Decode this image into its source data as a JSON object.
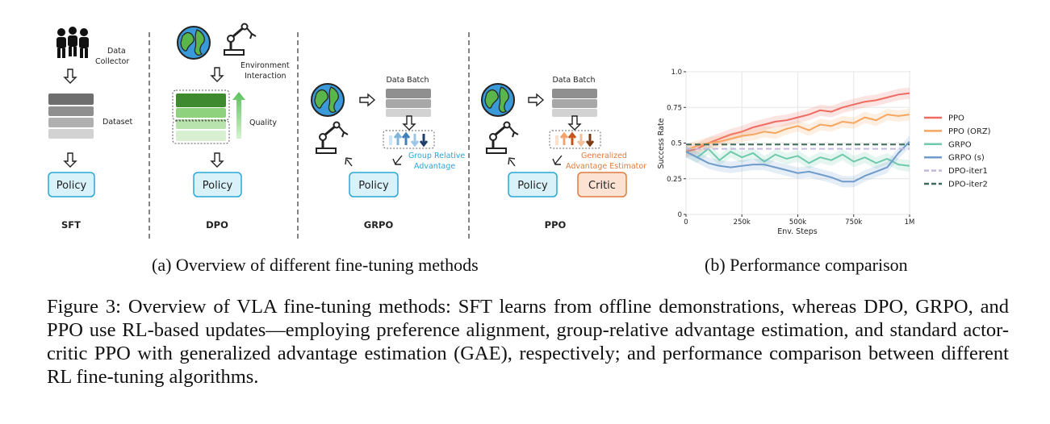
{
  "panel_a": {
    "sft": {
      "data_collector": [
        "Data",
        "Collector"
      ],
      "dataset": "Dataset",
      "policy": "Policy",
      "title": "SFT"
    },
    "dpo": {
      "env_interaction": [
        "Environment",
        "Interaction"
      ],
      "quality": "Quality",
      "policy": "Policy",
      "title": "DPO"
    },
    "grpo": {
      "data_batch": "Data Batch",
      "advantage": [
        "Group Relative",
        "Advantage"
      ],
      "policy": "Policy",
      "title": "GRPO"
    },
    "ppo": {
      "data_batch": "Data Batch",
      "advantage": [
        "Generalized",
        "Advantage Estimator"
      ],
      "policy": "Policy",
      "critic": "Critic",
      "title": "PPO"
    }
  },
  "captions": {
    "a": "(a) Overview of different fine-tuning methods",
    "b": "(b) Performance comparison",
    "figure": "Figure 3: Overview of VLA fine-tuning methods: SFT learns from offline demonstrations, whereas DPO, GRPO, and PPO use RL-based updates—employing preference alignment, group-relative advantage estimation, and standard actor-critic PPO with generalized advantage estimation (GAE), respectively; and performance comparison between different RL fine-tuning algorithms."
  },
  "colors": {
    "policy_fill": "#d9f1f9",
    "policy_stroke": "#2aa7d6",
    "critic_fill": "#fce2d3",
    "critic_stroke": "#e07c3e",
    "grpo_text": "#2aa7d6",
    "ppo_text": "#e07c3e"
  },
  "chart_data": {
    "type": "line",
    "xlabel": "Env. Steps",
    "ylabel": "Success Rate",
    "xlim": [
      0,
      1000000
    ],
    "ylim": [
      0,
      1.0
    ],
    "xticks": [
      0,
      250000,
      500000,
      750000,
      1000000
    ],
    "xtick_labels": [
      "0",
      "250k",
      "500k",
      "750k",
      "1M"
    ],
    "yticks": [
      0,
      0.25,
      0.5,
      0.75,
      1.0
    ],
    "ytick_labels": [
      "0",
      "0.25",
      "0.5",
      "0.75",
      "1.0"
    ],
    "legend_position": "right",
    "grid": true,
    "series": [
      {
        "name": "PPO",
        "color": "#ef6b61",
        "dash": "solid",
        "x": [
          0,
          50000,
          100000,
          150000,
          200000,
          250000,
          300000,
          350000,
          400000,
          450000,
          500000,
          550000,
          600000,
          650000,
          700000,
          750000,
          800000,
          850000,
          900000,
          950000,
          1000000
        ],
        "y": [
          0.44,
          0.46,
          0.5,
          0.53,
          0.56,
          0.58,
          0.61,
          0.63,
          0.65,
          0.66,
          0.68,
          0.7,
          0.73,
          0.72,
          0.75,
          0.77,
          0.79,
          0.8,
          0.82,
          0.84,
          0.85
        ]
      },
      {
        "name": "PPO (ORZ)",
        "color": "#f6a65f",
        "dash": "solid",
        "x": [
          0,
          50000,
          100000,
          150000,
          200000,
          250000,
          300000,
          350000,
          400000,
          450000,
          500000,
          550000,
          600000,
          650000,
          700000,
          750000,
          800000,
          850000,
          900000,
          950000,
          1000000
        ],
        "y": [
          0.45,
          0.48,
          0.5,
          0.51,
          0.53,
          0.55,
          0.56,
          0.58,
          0.57,
          0.6,
          0.62,
          0.59,
          0.63,
          0.62,
          0.65,
          0.64,
          0.68,
          0.66,
          0.7,
          0.69,
          0.7
        ]
      },
      {
        "name": "GRPO",
        "color": "#6fcaad",
        "dash": "solid",
        "x": [
          0,
          50000,
          100000,
          150000,
          200000,
          250000,
          300000,
          350000,
          400000,
          450000,
          500000,
          550000,
          600000,
          650000,
          700000,
          750000,
          800000,
          850000,
          900000,
          950000,
          1000000
        ],
        "y": [
          0.44,
          0.4,
          0.46,
          0.38,
          0.44,
          0.4,
          0.43,
          0.37,
          0.42,
          0.39,
          0.41,
          0.36,
          0.4,
          0.38,
          0.42,
          0.37,
          0.4,
          0.36,
          0.39,
          0.35,
          0.34
        ]
      },
      {
        "name": "GRPO (s)",
        "color": "#6f9ccc",
        "dash": "solid",
        "x": [
          0,
          50000,
          100000,
          150000,
          200000,
          250000,
          300000,
          350000,
          400000,
          450000,
          500000,
          550000,
          600000,
          650000,
          700000,
          750000,
          800000,
          850000,
          900000,
          950000,
          1000000
        ],
        "y": [
          0.44,
          0.4,
          0.36,
          0.34,
          0.33,
          0.34,
          0.35,
          0.35,
          0.33,
          0.31,
          0.29,
          0.3,
          0.28,
          0.26,
          0.23,
          0.23,
          0.27,
          0.3,
          0.33,
          0.43,
          0.51
        ]
      },
      {
        "name": "DPO-iter1",
        "color": "#c2b8dd",
        "dash": "dashed",
        "x": [
          0,
          1000000
        ],
        "y": [
          0.46,
          0.46
        ]
      },
      {
        "name": "DPO-iter2",
        "color": "#3d6b5b",
        "dash": "dashed",
        "x": [
          0,
          1000000
        ],
        "y": [
          0.49,
          0.49
        ]
      }
    ]
  }
}
